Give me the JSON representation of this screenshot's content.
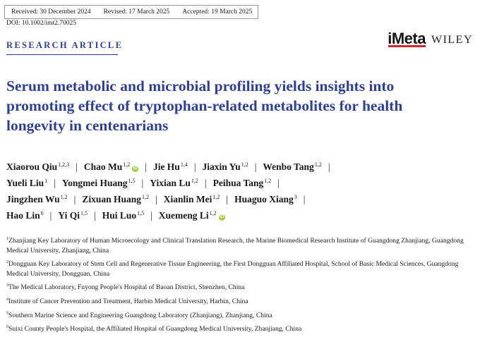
{
  "dates": [
    "Received: 30 December 2024",
    "Revised: 17 March 2025",
    "Accepted: 19 March 2025"
  ],
  "doi": "DOI: 10.1002/imt2.70025",
  "article_type": "RESEARCH ARTICLE",
  "logo": {
    "journal": "iMeta",
    "publisher": "WILEY"
  },
  "title": "Serum metabolic and microbial profiling yields insights into promoting effect of tryptophan-related metabolites for health longevity in centenarians",
  "authors": [
    {
      "name": "Xiaorou Qiu",
      "sup": "1,2,3"
    },
    {
      "name": "Chao Mu",
      "sup": "1,2",
      "orcid": true
    },
    {
      "name": "Jie Hu",
      "sup": "1,4"
    },
    {
      "name": "Jiaxin Yu",
      "sup": "1,2"
    },
    {
      "name": "Wenbo Tang",
      "sup": "1,2"
    },
    {
      "name": "Yueli Liu",
      "sup": "1"
    },
    {
      "name": "Yongmei Huang",
      "sup": "1,5"
    },
    {
      "name": "Yixian Lu",
      "sup": "1,2"
    },
    {
      "name": "Peihua Tang",
      "sup": "1,2"
    },
    {
      "name": "Jingzhen Wu",
      "sup": "1,2"
    },
    {
      "name": "Zixuan Huang",
      "sup": "1,2"
    },
    {
      "name": "Xianlin Mei",
      "sup": "1,2"
    },
    {
      "name": "Huaguo Xiang",
      "sup": "3"
    },
    {
      "name": "Hao Lin",
      "sup": "6"
    },
    {
      "name": "Yi Qi",
      "sup": "1,5"
    },
    {
      "name": "Hui Luo",
      "sup": "1,5"
    },
    {
      "name": "Xuemeng Li",
      "sup": "1,2",
      "orcid": true
    }
  ],
  "orcid_glyph": "iD",
  "separator": "|",
  "affiliations": [
    {
      "num": "1",
      "text": "Zhanjiang Key Laboratory of Human Microecology and Clinical Translation Research, the Marine Biomedical Research Institute of Guangdong Zhanjiang, Guangdong Medical University, Zhanjiang, China"
    },
    {
      "num": "2",
      "text": "Dongguan Key Laboratory of Stem Cell and Regenerative Tissue Engineering, the First Dongguan Affiliated Hospital, School of Basic Medical Sciences, Guangdong Medical University, Dongguan, China"
    },
    {
      "num": "3",
      "text": "The Medical Laboratory, Fuyong People's Hospital of Baoan District, Shenzhen, China"
    },
    {
      "num": "4",
      "text": "Institute of Cancer Prevention and Treatment, Harbin Medical University, Harbin, China"
    },
    {
      "num": "5",
      "text": "Southern Marine Science and Engineering Guangdong Laboratory (Zhanjiang), Zhanjiang, China"
    },
    {
      "num": "6",
      "text": "Suixi County People's Hospital, the Affiliated Hospital of Guangdong Medical University, Zhanjiang, China"
    }
  ],
  "colors": {
    "title": "#2e3f97",
    "logo_bar": "#d6242f",
    "orcid": "#a6ce39"
  }
}
